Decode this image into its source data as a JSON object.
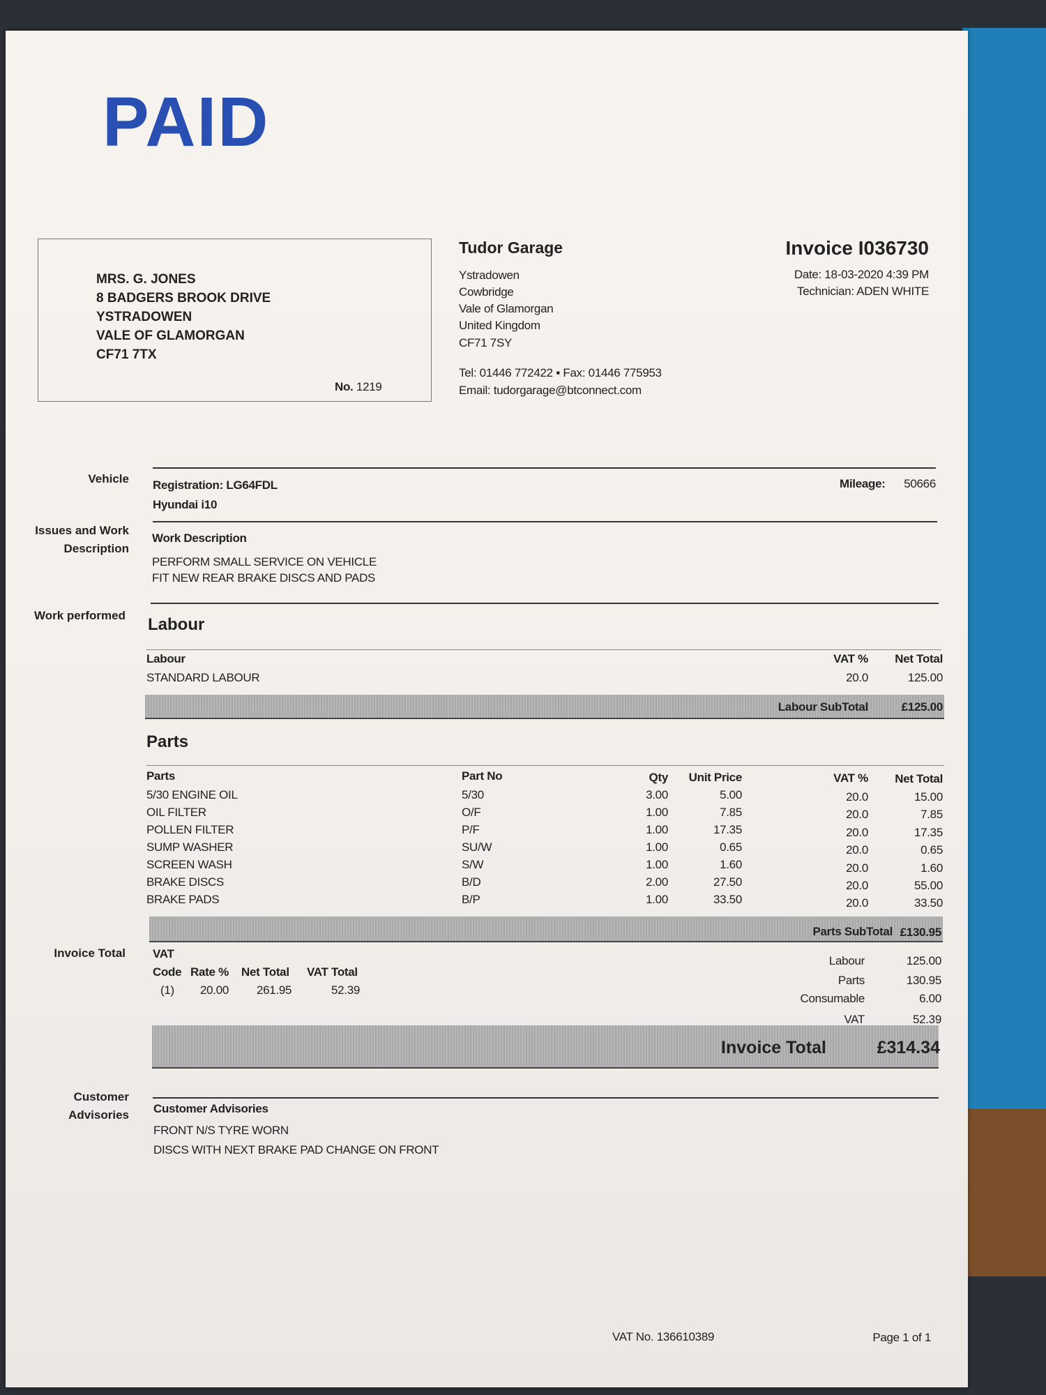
{
  "stamp": "PAID",
  "customer": {
    "lines": [
      "MRS. G. JONES",
      "8 BADGERS BROOK DRIVE",
      "YSTRADOWEN",
      "VALE OF GLAMORGAN",
      "CF71 7TX"
    ],
    "no_label": "No.",
    "no": "1219"
  },
  "company": {
    "name": "Tudor Garage",
    "address": [
      "Ystradowen",
      "Cowbridge",
      "Vale of Glamorgan",
      "United Kingdom",
      "CF71 7SY"
    ],
    "contact": "Tel: 01446 772422 ▪ Fax: 01446 775953",
    "email": "Email: tudorgarage@btconnect.com"
  },
  "invoice": {
    "title": "Invoice I036730",
    "date": "Date: 18-03-2020 4:39 PM",
    "technician": "Technician: ADEN WHITE"
  },
  "sections": {
    "vehicle": "Vehicle",
    "issues": "Issues and Work",
    "issues2": "Description",
    "work": "Work performed",
    "total": "Invoice Total",
    "advis": "Customer",
    "advis2": "Advisories"
  },
  "vehicle": {
    "registration": "Registration: LG64FDL",
    "model": "Hyundai i10",
    "mileage_label": "Mileage:",
    "mileage": "50666"
  },
  "work": {
    "heading": "Work Description",
    "lines": [
      "PERFORM SMALL SERVICE ON VEHICLE",
      "FIT NEW REAR BRAKE DISCS AND PADS"
    ]
  },
  "labour": {
    "heading": "Labour",
    "cols": [
      "Labour",
      "VAT %",
      "Net Total"
    ],
    "rows": [
      {
        "desc": "STANDARD LABOUR",
        "vat": "20.0",
        "net": "125.00"
      }
    ],
    "subtotal_label": "Labour SubTotal",
    "subtotal": "£125.00"
  },
  "parts": {
    "heading": "Parts",
    "cols": [
      "Parts",
      "Part No",
      "Qty",
      "Unit Price",
      "VAT %",
      "Net Total"
    ],
    "rows": [
      {
        "desc": "5/30 ENGINE OIL",
        "no": "5/30",
        "qty": "3.00",
        "price": "5.00",
        "vat": "20.0",
        "net": "15.00"
      },
      {
        "desc": "OIL FILTER",
        "no": "O/F",
        "qty": "1.00",
        "price": "7.85",
        "vat": "20.0",
        "net": "7.85"
      },
      {
        "desc": "POLLEN FILTER",
        "no": "P/F",
        "qty": "1.00",
        "price": "17.35",
        "vat": "20.0",
        "net": "17.35"
      },
      {
        "desc": "SUMP WASHER",
        "no": "SU/W",
        "qty": "1.00",
        "price": "0.65",
        "vat": "20.0",
        "net": "0.65"
      },
      {
        "desc": "SCREEN WASH",
        "no": "S/W",
        "qty": "1.00",
        "price": "1.60",
        "vat": "20.0",
        "net": "1.60"
      },
      {
        "desc": "BRAKE DISCS",
        "no": "B/D",
        "qty": "2.00",
        "price": "27.50",
        "vat": "20.0",
        "net": "55.00"
      },
      {
        "desc": "BRAKE PADS",
        "no": "B/P",
        "qty": "1.00",
        "price": "33.50",
        "vat": "20.0",
        "net": "33.50"
      }
    ],
    "subtotal_label": "Parts SubTotal",
    "subtotal": "£130.95"
  },
  "vat": {
    "heading": "VAT",
    "cols": [
      "Code",
      "Rate %",
      "Net Total",
      "VAT Total"
    ],
    "row": [
      "(1)",
      "20.00",
      "261.95",
      "52.39"
    ]
  },
  "totals": {
    "rows": [
      {
        "label": "Labour",
        "value": "125.00"
      },
      {
        "label": "Parts",
        "value": "130.95"
      },
      {
        "label": "Consumable",
        "value": "6.00"
      },
      {
        "label": "VAT",
        "value": "52.39"
      }
    ],
    "invoice_total_label": "Invoice Total",
    "invoice_total": "£314.34"
  },
  "advisories": {
    "heading": "Customer Advisories",
    "lines": [
      "FRONT N/S TYRE WORN",
      "DISCS WITH NEXT BRAKE PAD CHANGE ON FRONT"
    ]
  },
  "footer": {
    "vat_no": "VAT No.  136610389",
    "page": "Page 1 of 1"
  }
}
